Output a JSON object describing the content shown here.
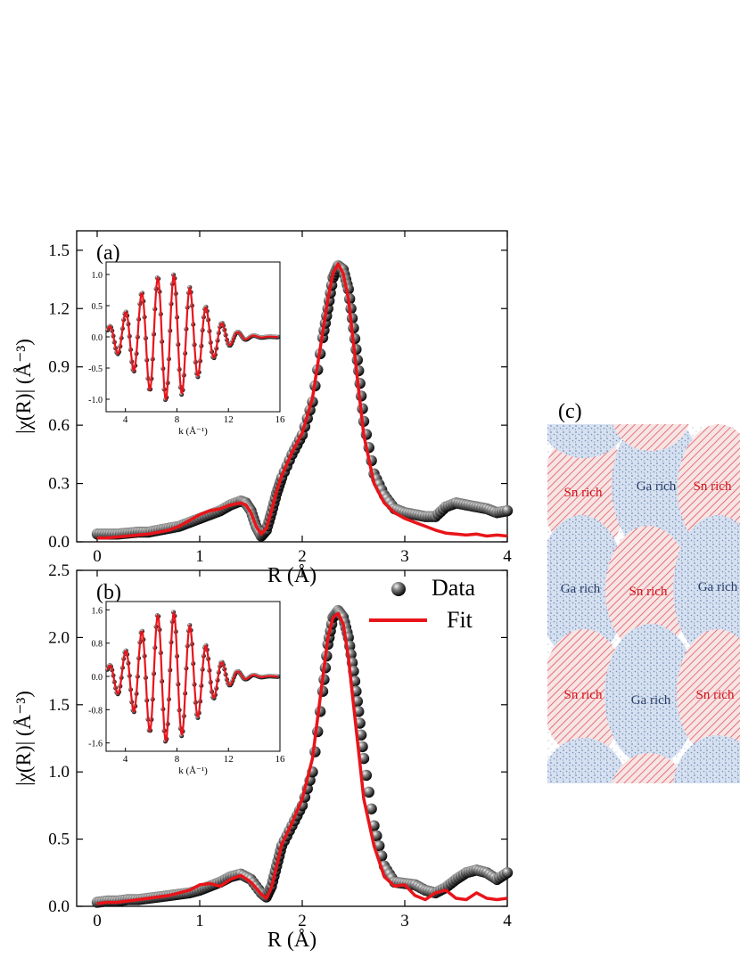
{
  "chart_data": [
    {
      "panel_label": "(a)",
      "type": "line",
      "xlabel": "R (Å)",
      "ylabel": "|χ(R)| (Å⁻³)",
      "xlim": [
        -0.2,
        4
      ],
      "ylim": [
        0,
        1.6
      ],
      "xticks": [
        0,
        1,
        2,
        3,
        4
      ],
      "yticks": [
        0.0,
        0.3,
        0.6,
        0.9,
        1.2,
        1.5
      ],
      "ytick_labels": [
        "0.0",
        "0.3",
        "0.6",
        "0.9",
        "1.2",
        "1.5"
      ],
      "series": [
        {
          "style": "markers",
          "color": "#111111",
          "x": [
            0,
            0.1,
            0.2,
            0.3,
            0.4,
            0.5,
            0.6,
            0.7,
            0.8,
            0.9,
            1.0,
            1.1,
            1.2,
            1.3,
            1.4,
            1.45,
            1.5,
            1.55,
            1.6,
            1.65,
            1.7,
            1.75,
            1.8,
            1.9,
            2.0,
            2.1,
            2.2,
            2.25,
            2.3,
            2.35,
            2.4,
            2.45,
            2.5,
            2.55,
            2.6,
            2.7,
            2.8,
            2.9,
            3.0,
            3.1,
            3.2,
            3.3,
            3.4,
            3.5,
            3.6,
            3.7,
            3.8,
            3.9,
            4.0
          ],
          "y": [
            0.04,
            0.04,
            0.04,
            0.045,
            0.05,
            0.05,
            0.06,
            0.07,
            0.08,
            0.1,
            0.12,
            0.14,
            0.16,
            0.19,
            0.21,
            0.2,
            0.16,
            0.08,
            0.03,
            0.06,
            0.15,
            0.25,
            0.33,
            0.45,
            0.55,
            0.72,
            1.05,
            1.2,
            1.36,
            1.42,
            1.4,
            1.3,
            1.1,
            0.88,
            0.62,
            0.35,
            0.24,
            0.17,
            0.15,
            0.14,
            0.13,
            0.13,
            0.18,
            0.2,
            0.19,
            0.18,
            0.17,
            0.15,
            0.16
          ]
        },
        {
          "style": "line",
          "color": "#e8141a",
          "x": [
            0,
            0.1,
            0.2,
            0.3,
            0.4,
            0.5,
            0.6,
            0.7,
            0.8,
            0.9,
            1.0,
            1.1,
            1.2,
            1.3,
            1.4,
            1.45,
            1.5,
            1.55,
            1.6,
            1.65,
            1.7,
            1.75,
            1.8,
            1.9,
            2.0,
            2.1,
            2.2,
            2.25,
            2.3,
            2.35,
            2.4,
            2.45,
            2.5,
            2.55,
            2.6,
            2.7,
            2.8,
            2.9,
            3.0,
            3.1,
            3.2,
            3.3,
            3.4,
            3.5,
            3.6,
            3.7,
            3.8,
            3.9,
            4.0
          ],
          "y": [
            0.02,
            0.02,
            0.025,
            0.03,
            0.035,
            0.04,
            0.05,
            0.06,
            0.08,
            0.11,
            0.14,
            0.16,
            0.17,
            0.19,
            0.2,
            0.19,
            0.15,
            0.08,
            0.04,
            0.07,
            0.16,
            0.26,
            0.34,
            0.46,
            0.56,
            0.74,
            1.08,
            1.25,
            1.38,
            1.43,
            1.38,
            1.25,
            1.02,
            0.78,
            0.55,
            0.3,
            0.2,
            0.15,
            0.12,
            0.1,
            0.08,
            0.06,
            0.045,
            0.04,
            0.035,
            0.04,
            0.03,
            0.035,
            0.03
          ]
        }
      ],
      "inset": {
        "xlabel": "k (Å⁻¹)",
        "xlim": [
          2.5,
          16
        ],
        "ylim": [
          -1.2,
          1.2
        ],
        "xticks": [
          4,
          8,
          12,
          16
        ],
        "yticks": [
          -1.0,
          -0.5,
          0.0,
          0.5,
          1.0
        ],
        "ytick_labels": [
          "-1.0",
          "-0.5",
          "0.0",
          "0.5",
          "1.0"
        ],
        "amplitude": 1.0
      }
    },
    {
      "panel_label": "(b)",
      "type": "line",
      "xlabel": "R (Å)",
      "ylabel": "|χ(R)| (Å⁻³)",
      "xlim": [
        -0.2,
        4
      ],
      "ylim": [
        0,
        2.5
      ],
      "xticks": [
        0,
        1,
        2,
        3,
        4
      ],
      "yticks": [
        0.0,
        0.5,
        1.0,
        1.5,
        2.0,
        2.5
      ],
      "ytick_labels": [
        "0.0",
        "0.5",
        "1.0",
        "1.5",
        "2.0",
        "2.5"
      ],
      "legend": {
        "position": "top-right",
        "entries": [
          "Data",
          "Fit"
        ]
      },
      "series": [
        {
          "name": "Data",
          "style": "markers",
          "color": "#111111",
          "x": [
            0,
            0.1,
            0.2,
            0.3,
            0.4,
            0.5,
            0.6,
            0.7,
            0.8,
            0.9,
            1.0,
            1.1,
            1.2,
            1.3,
            1.4,
            1.5,
            1.6,
            1.65,
            1.7,
            1.75,
            1.8,
            1.9,
            2.0,
            2.1,
            2.2,
            2.25,
            2.3,
            2.35,
            2.4,
            2.45,
            2.5,
            2.55,
            2.6,
            2.7,
            2.8,
            2.9,
            3.0,
            3.1,
            3.2,
            3.3,
            3.4,
            3.5,
            3.6,
            3.7,
            3.8,
            3.9,
            4.0
          ],
          "y": [
            0.03,
            0.04,
            0.04,
            0.05,
            0.05,
            0.06,
            0.07,
            0.08,
            0.09,
            0.1,
            0.12,
            0.15,
            0.18,
            0.22,
            0.24,
            0.2,
            0.1,
            0.07,
            0.15,
            0.3,
            0.45,
            0.6,
            0.75,
            1.0,
            1.6,
            1.95,
            2.15,
            2.2,
            2.15,
            2.0,
            1.75,
            1.45,
            1.1,
            0.6,
            0.3,
            0.18,
            0.17,
            0.16,
            0.12,
            0.1,
            0.14,
            0.2,
            0.25,
            0.27,
            0.25,
            0.2,
            0.25
          ]
        },
        {
          "name": "Fit",
          "style": "line",
          "color": "#e8141a",
          "x": [
            0,
            0.1,
            0.2,
            0.3,
            0.4,
            0.5,
            0.6,
            0.7,
            0.8,
            0.9,
            1.0,
            1.1,
            1.2,
            1.3,
            1.4,
            1.5,
            1.6,
            1.65,
            1.7,
            1.75,
            1.8,
            1.9,
            2.0,
            2.1,
            2.2,
            2.25,
            2.3,
            2.35,
            2.4,
            2.45,
            2.5,
            2.55,
            2.6,
            2.7,
            2.8,
            2.9,
            3.0,
            3.1,
            3.2,
            3.3,
            3.4,
            3.5,
            3.6,
            3.7,
            3.8,
            3.9,
            4.0
          ],
          "y": [
            0.02,
            0.03,
            0.03,
            0.04,
            0.05,
            0.06,
            0.07,
            0.08,
            0.1,
            0.12,
            0.16,
            0.17,
            0.15,
            0.2,
            0.23,
            0.18,
            0.09,
            0.06,
            0.14,
            0.3,
            0.46,
            0.62,
            0.8,
            1.1,
            1.7,
            2.0,
            2.15,
            2.18,
            2.1,
            1.85,
            1.5,
            1.15,
            0.8,
            0.45,
            0.22,
            0.15,
            0.16,
            0.08,
            0.05,
            0.1,
            0.12,
            0.06,
            0.05,
            0.1,
            0.06,
            0.05,
            0.06
          ]
        }
      ],
      "inset": {
        "xlabel": "k (Å⁻¹)",
        "xlim": [
          2.5,
          16
        ],
        "ylim": [
          -1.8,
          1.8
        ],
        "xticks": [
          4,
          8,
          12,
          16
        ],
        "yticks": [
          -1.6,
          -0.8,
          0.0,
          0.8,
          1.6
        ],
        "ytick_labels": [
          "-1.6",
          "-0.8",
          "0.0",
          "0.8",
          "1.6"
        ],
        "amplitude": 1.55
      }
    }
  ],
  "schematic": {
    "panel_label": "(c)",
    "ga_label": "Ga rich",
    "sn_label": "Sn rich",
    "ga_color": "#6f8fbf",
    "sn_color": "#e0585f",
    "ga_text_color": "#2b3f6b",
    "sn_text_color": "#d0141a"
  }
}
